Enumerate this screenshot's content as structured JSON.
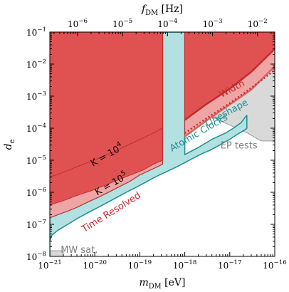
{
  "chart_data": {
    "type": "area",
    "title": "",
    "xlabel": "m_DM [eV]",
    "ylabel": "d_e",
    "top_xlabel": "f_DM [Hz]",
    "xscale": "log",
    "yscale": "log",
    "xlim": [
      1e-21,
      1e-16
    ],
    "ylim": [
      1e-08,
      0.1
    ],
    "top_xlim": [
      2.418e-07,
      0.02418
    ],
    "x_ticks": [
      {
        "value": 1e-21,
        "label": "10^{-21}"
      },
      {
        "value": 1e-20,
        "label": "10^{-20}"
      },
      {
        "value": 1e-19,
        "label": "10^{-19}"
      },
      {
        "value": 1e-18,
        "label": "10^{-18}"
      },
      {
        "value": 1e-17,
        "label": "10^{-17}"
      },
      {
        "value": 1e-16,
        "label": "10^{-16}"
      }
    ],
    "y_ticks": [
      {
        "value": 1e-08,
        "label": "10^{-8}"
      },
      {
        "value": 1e-07,
        "label": "10^{-7}"
      },
      {
        "value": 1e-06,
        "label": "10^{-6}"
      },
      {
        "value": 1e-05,
        "label": "10^{-5}"
      },
      {
        "value": 0.0001,
        "label": "10^{-4}"
      },
      {
        "value": 0.001,
        "label": "10^{-3}"
      },
      {
        "value": 0.01,
        "label": "10^{-2}"
      },
      {
        "value": 0.1,
        "label": "10^{-1}"
      }
    ],
    "top_ticks": [
      {
        "value": 1e-06,
        "label": "10^{-6}"
      },
      {
        "value": 1e-05,
        "label": "10^{-5}"
      },
      {
        "value": 0.0001,
        "label": "10^{-4}"
      },
      {
        "value": 0.001,
        "label": "10^{-3}"
      },
      {
        "value": 0.01,
        "label": "10^{-2}"
      }
    ],
    "regions": [
      {
        "id": "ep-tests",
        "color": "#d9d9d9",
        "edge": "#9a9a9a",
        "points": [
          [
            3.3e-18,
            1
          ],
          [
            1e-16,
            1
          ],
          [
            1e-16,
            4e-05
          ],
          [
            5e-17,
            4e-05
          ],
          [
            2.5e-17,
            7e-05
          ],
          [
            3.3e-18,
            0.00025
          ]
        ]
      },
      {
        "id": "mw-sat",
        "color": "#d9d9d9",
        "edge": "#9a9a9a",
        "points": [
          [
            1e-21,
            1e-08
          ],
          [
            2e-21,
            1e-08
          ],
          [
            2e-21,
            1.5e-08
          ],
          [
            1e-21,
            1.5e-08
          ]
        ]
      },
      {
        "id": "atomic-clocks",
        "color": "#b3e0e0",
        "edge": "#1a9090",
        "points": [
          [
            1e-21,
            1e-08
          ],
          [
            1e-21,
            1.6e-07
          ],
          [
            1.5e-21,
            2e-07
          ],
          [
            2.5e-21,
            2.6e-07
          ],
          [
            4e-21,
            3.4e-07
          ],
          [
            7e-21,
            5e-07
          ],
          [
            1.2e-20,
            7e-07
          ],
          [
            2e-20,
            1e-06
          ],
          [
            3.5e-20,
            1.5e-06
          ],
          [
            6e-20,
            2.2e-06
          ],
          [
            1e-19,
            3.5e-06
          ],
          [
            2e-19,
            5.5e-06
          ],
          [
            3.2e-19,
            7.5e-06
          ],
          [
            3.2e-19,
            0.1
          ],
          [
            1e-18,
            0.1
          ],
          [
            1e-18,
            1.5e-05
          ],
          [
            2e-18,
            2.5e-05
          ],
          [
            4e-18,
            4.5e-05
          ],
          [
            8e-18,
            7e-05
          ],
          [
            1.2e-17,
            0.0001
          ],
          [
            1.8e-17,
            0.00015
          ],
          [
            2.2e-17,
            0.00022
          ],
          [
            2.4e-17,
            0.00025
          ],
          [
            2.4e-17,
            0.0001
          ],
          [
            2.2e-17,
            9e-05
          ],
          [
            1.5e-17,
            6.5e-05
          ],
          [
            1e-17,
            4.5e-05
          ],
          [
            7e-18,
            3.4e-05
          ],
          [
            5e-18,
            2.6e-05
          ],
          [
            3.5e-18,
            2e-05
          ],
          [
            2.4e-18,
            1.6e-05
          ],
          [
            1.6e-18,
            1.2e-05
          ],
          [
            1.1e-18,
            9e-06
          ],
          [
            7e-19,
            6.5e-06
          ],
          [
            4.5e-19,
            4.8e-06
          ],
          [
            3e-19,
            3.7e-06
          ],
          [
            2e-19,
            2.8e-06
          ],
          [
            1.3e-19,
            2e-06
          ],
          [
            8e-20,
            1.4e-06
          ],
          [
            5e-20,
            1e-06
          ],
          [
            3e-20,
            6.8e-07
          ],
          [
            2e-20,
            5e-07
          ],
          [
            1.2e-20,
            3.4e-07
          ],
          [
            7e-21,
            2.3e-07
          ],
          [
            4e-21,
            1.5e-07
          ],
          [
            2.5e-21,
            1e-07
          ],
          [
            1.5e-21,
            6.5e-08
          ],
          [
            1.1e-21,
            4.5e-08
          ],
          [
            1e-21,
            3e-08
          ]
        ]
      },
      {
        "id": "time-resolved",
        "color": "#f0a5a5",
        "edge": "#c8282c",
        "points": [
          [
            1e-21,
            1.6e-07
          ],
          [
            1.5e-21,
            2e-07
          ],
          [
            2.5e-21,
            2.6e-07
          ],
          [
            4e-21,
            3.4e-07
          ],
          [
            7e-21,
            5e-07
          ],
          [
            1.2e-20,
            7e-07
          ],
          [
            2e-20,
            1e-06
          ],
          [
            3.5e-20,
            1.5e-06
          ],
          [
            6e-20,
            2.2e-06
          ],
          [
            1e-19,
            3.5e-06
          ],
          [
            2e-19,
            5.5e-06
          ],
          [
            3.2e-19,
            7.5e-06
          ],
          [
            3.2e-19,
            0.1
          ],
          [
            1e-21,
            0.1
          ]
        ]
      },
      {
        "id": "width",
        "color": "#f0a5a5",
        "edge": "#c8282c",
        "points": [
          [
            1e-18,
            0.1
          ],
          [
            1e-16,
            0.1
          ],
          [
            1e-16,
            0.0085
          ],
          [
            3e-17,
            0.0016
          ],
          [
            1e-17,
            0.00055
          ],
          [
            3e-18,
            0.00017
          ],
          [
            1e-18,
            5.5e-05
          ]
        ]
      },
      {
        "id": "lineshape",
        "color": "#e05252",
        "edge": "#c8282c",
        "points": [
          [
            1e-18,
            0.1
          ],
          [
            1e-16,
            0.1
          ],
          [
            1e-16,
            0.03
          ],
          [
            3e-17,
            0.0057
          ],
          [
            1e-17,
            0.0017
          ],
          [
            3e-18,
            0.00056
          ],
          [
            1e-18,
            0.00018
          ]
        ]
      },
      {
        "id": "k-1e5",
        "color": "#e05252",
        "edge": "#c8282c",
        "points": [
          [
            1e-21,
            4e-07
          ],
          [
            2e-21,
            5.5e-07
          ],
          [
            4e-21,
            8e-07
          ],
          [
            8e-21,
            1.1e-06
          ],
          [
            1.6e-20,
            1.6e-06
          ],
          [
            3e-20,
            2.3e-06
          ],
          [
            6e-20,
            3.4e-06
          ],
          [
            1.2e-19,
            5e-06
          ],
          [
            2.2e-19,
            8e-06
          ],
          [
            3.2e-19,
            1e-05
          ],
          [
            3.2e-19,
            0.1
          ],
          [
            1e-21,
            0.1
          ]
        ]
      },
      {
        "id": "k-1e4",
        "color": "#e05252",
        "edge": "#c8282c",
        "points": [
          [
            1e-21,
            3e-06
          ],
          [
            2e-21,
            4.2e-06
          ],
          [
            4e-21,
            6.3e-06
          ],
          [
            8e-21,
            9e-06
          ],
          [
            1.6e-20,
            1.35e-05
          ],
          [
            3e-20,
            2e-05
          ],
          [
            6e-20,
            3.2e-05
          ],
          [
            1.2e-19,
            5e-05
          ],
          [
            2.2e-19,
            7.5e-05
          ],
          [
            3.2e-19,
            0.0001
          ],
          [
            3.2e-19,
            0.1
          ],
          [
            1e-21,
            0.1
          ]
        ]
      }
    ],
    "lines": [
      {
        "id": "width-edge",
        "color": "#e06060",
        "dashed": false,
        "points": [
          [
            1e-18,
            5.5e-05
          ],
          [
            3e-18,
            0.00017
          ],
          [
            1e-17,
            0.00055
          ],
          [
            3e-17,
            0.0016
          ],
          [
            1e-16,
            0.0085
          ]
        ]
      },
      {
        "id": "lineshape-edge",
        "color": "#c8282c",
        "dashed": false,
        "points": [
          [
            1e-18,
            0.00018
          ],
          [
            3e-18,
            0.00056
          ],
          [
            1e-17,
            0.0017
          ],
          [
            3e-17,
            0.0057
          ],
          [
            1e-16,
            0.03
          ]
        ]
      },
      {
        "id": "dotted-bound",
        "color": "#c8282c",
        "dashed": true,
        "points": [
          [
            1e-18,
            7e-05
          ],
          [
            3e-18,
            0.0002
          ],
          [
            1e-17,
            0.0006
          ],
          [
            3e-17,
            0.0018
          ],
          [
            1e-16,
            0.0065
          ]
        ]
      }
    ],
    "annotations": [
      {
        "id": "k1e4",
        "text": "K = 10^4",
        "x": 2e-20,
        "y": 1.2e-05,
        "angle": -30,
        "color": "#000000"
      },
      {
        "id": "k1e5",
        "text": "K = 10^5",
        "x": 2.5e-20,
        "y": 1.5e-06,
        "angle": -30,
        "color": "#000000"
      },
      {
        "id": "time-resolved",
        "text": "Time Resolved",
        "x": 2.5e-20,
        "y": 2e-07,
        "angle": -32,
        "color": "#c8282c"
      },
      {
        "id": "atomic-clocks",
        "text": "Atomic Clocks",
        "x": 2.2e-18,
        "y": 6e-05,
        "angle": -30,
        "color": "#1a9090"
      },
      {
        "id": "width",
        "text": "Width",
        "x": 1.2e-17,
        "y": 0.0014,
        "angle": -28,
        "color": "#c8282c"
      },
      {
        "id": "lineshape",
        "text": "Lineshape",
        "x": 9e-18,
        "y": 0.00025,
        "angle": -28,
        "color": "#1a9090"
      },
      {
        "id": "ep-tests",
        "text": "EP tests",
        "x": 1.6e-17,
        "y": 2.3e-05,
        "angle": 0,
        "color": "#808080"
      },
      {
        "id": "mw-sat",
        "text": "MW sat.",
        "x": 4.5e-21,
        "y": 1.3e-08,
        "angle": 0,
        "color": "#808080"
      }
    ]
  }
}
